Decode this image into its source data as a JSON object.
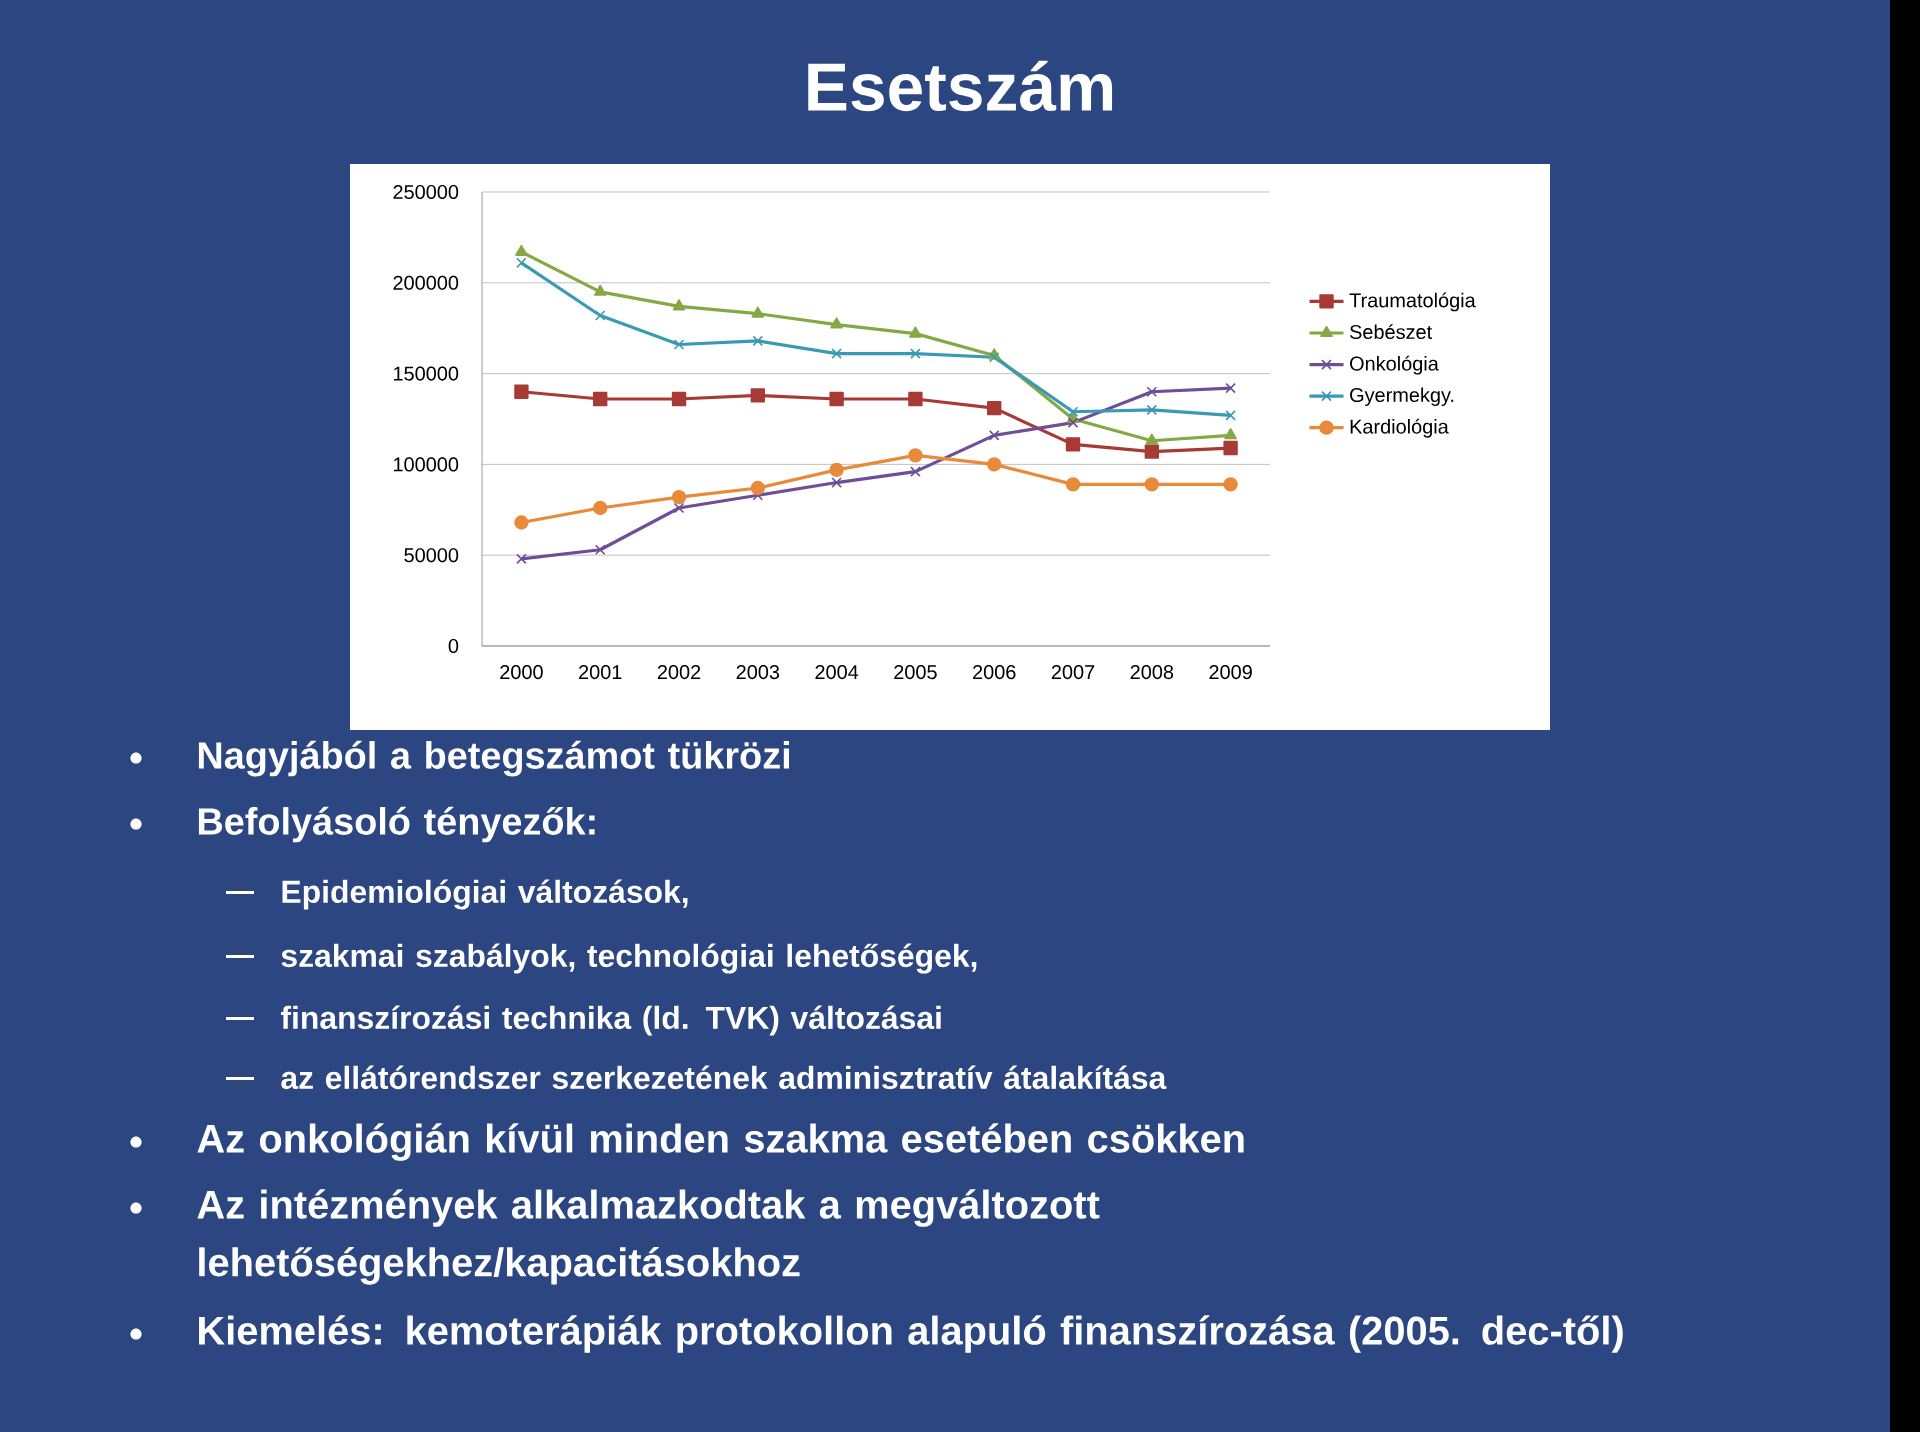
{
  "chart_data": {
    "type": "line",
    "title": "Esetszám",
    "categories": [
      "2000",
      "2001",
      "2002",
      "2003",
      "2004",
      "2005",
      "2006",
      "2007",
      "2008",
      "2009"
    ],
    "series": [
      {
        "name": "Traumatológia",
        "color": "#a83a36",
        "marker": "square",
        "values": [
          140000,
          136000,
          136000,
          138000,
          136000,
          136000,
          131000,
          111000,
          107000,
          109000
        ]
      },
      {
        "name": "Sebészet",
        "color": "#86a844",
        "marker": "triangle",
        "values": [
          217000,
          195000,
          187000,
          183000,
          177000,
          172000,
          160000,
          125000,
          113000,
          116000
        ]
      },
      {
        "name": "Onkológia",
        "color": "#6e4e96",
        "marker": "cross",
        "values": [
          48000,
          53000,
          76000,
          83000,
          90000,
          96000,
          116000,
          123000,
          140000,
          142000
        ]
      },
      {
        "name": "Gyermekgy.",
        "color": "#3a9ab4",
        "marker": "cross",
        "values": [
          211000,
          182000,
          166000,
          168000,
          161000,
          161000,
          159000,
          129000,
          130000,
          127000
        ]
      },
      {
        "name": "Kardiológia",
        "color": "#e88a3a",
        "marker": "circle",
        "values": [
          68000,
          76000,
          82000,
          87000,
          97000,
          105000,
          100000,
          89000,
          89000,
          89000
        ]
      }
    ],
    "ylim": [
      0,
      250000
    ],
    "yticks": [
      0,
      50000,
      100000,
      150000,
      200000,
      250000
    ],
    "grid": "y",
    "legend": "right",
    "annotations": [
      "Nagyjából a betegszámot tükrözi",
      "Befolyásoló tényezők:",
      "Epidemiológiai változások,",
      "szakmai szabályok, technológiai lehetőségek,",
      "finanszírozási technika (ld. TVK) változásai",
      "az ellátórendszer szerkezetének adminisztratív átalakítása",
      "Az onkológián kívül minden szakma esetében csökken",
      "Az intézmények alkalmazkodtak a megváltozott lehetőségekhez/kapacitásokhoz",
      "Kiemelés: kemoterápiák protokollon alapuló finanszírozása (2005. dec-től)"
    ]
  }
}
